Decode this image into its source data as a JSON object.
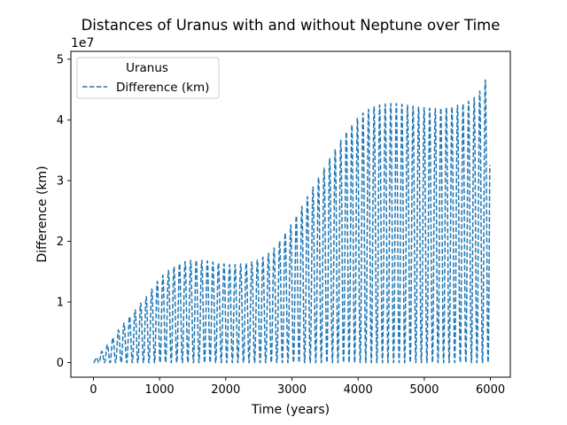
{
  "chart_data": {
    "type": "line",
    "title": "Distances of Uranus with and without Neptune over Time",
    "xlabel": "Time (years)",
    "ylabel": "Difference (km)",
    "y_offset_label": "1e7",
    "xlim": [
      -340,
      6300
    ],
    "ylim": [
      -2400000,
      51300000
    ],
    "x_ticks": [
      0,
      1000,
      2000,
      3000,
      4000,
      5000,
      6000
    ],
    "x_tick_labels": [
      "0",
      "1000",
      "2000",
      "3000",
      "4000",
      "5000",
      "6000"
    ],
    "y_ticks": [
      0,
      10000000,
      20000000,
      30000000,
      40000000,
      50000000
    ],
    "y_tick_labels": [
      "0",
      "1",
      "2",
      "3",
      "4",
      "5"
    ],
    "grid": false,
    "legend": {
      "title": "Uranus",
      "placement": "upper-left"
    },
    "series": [
      {
        "name": "Difference (km)",
        "color": "#1f77b4",
        "linestyle": "dashed",
        "oscillation_period_years": 84,
        "envelope": {
          "x": [
            0,
            100,
            200,
            300,
            400,
            500,
            600,
            700,
            800,
            900,
            1000,
            1100,
            1200,
            1300,
            1400,
            1500,
            1600,
            1700,
            1800,
            1900,
            2000,
            2100,
            2200,
            2300,
            2400,
            2500,
            2600,
            2700,
            2800,
            2900,
            3000,
            3100,
            3200,
            3300,
            3400,
            3500,
            3600,
            3700,
            3800,
            3900,
            4000,
            4100,
            4200,
            4300,
            4400,
            4500,
            4600,
            4700,
            4800,
            4900,
            5000,
            5100,
            5200,
            5300,
            5400,
            5500,
            5600,
            5700,
            5800,
            5900,
            5990
          ],
          "upper": [
            300000,
            1500000,
            2800000,
            4200000,
            5700000,
            7000000,
            8300000,
            9600000,
            10900000,
            12400000,
            13900000,
            14900000,
            15700000,
            16300000,
            16700000,
            16900000,
            16900000,
            16800000,
            16600000,
            16400000,
            16200000,
            16100000,
            16200000,
            16400000,
            16600000,
            17000000,
            17600000,
            18500000,
            19800000,
            21400000,
            23000000,
            24800000,
            26700000,
            28600000,
            30500000,
            32300000,
            34200000,
            36000000,
            37700000,
            39100000,
            40400000,
            41400000,
            42000000,
            42400000,
            42600000,
            42700000,
            42700000,
            42500000,
            42300000,
            42100000,
            42000000,
            41900000,
            41900000,
            42000000,
            42100000,
            42400000,
            42700000,
            43200000,
            44100000,
            45800000,
            49000000
          ],
          "lower": [
            0,
            0,
            0,
            0,
            0,
            0,
            0,
            0,
            0,
            0,
            0,
            0,
            0,
            0,
            0,
            0,
            0,
            0,
            0,
            0,
            0,
            0,
            0,
            0,
            0,
            0,
            0,
            0,
            0,
            0,
            0,
            0,
            0,
            0,
            0,
            0,
            0,
            0,
            0,
            0,
            0,
            0,
            0,
            0,
            0,
            0,
            0,
            0,
            0,
            0,
            0,
            0,
            0,
            0,
            0,
            0,
            0,
            0,
            0,
            0,
            0
          ]
        }
      }
    ]
  }
}
